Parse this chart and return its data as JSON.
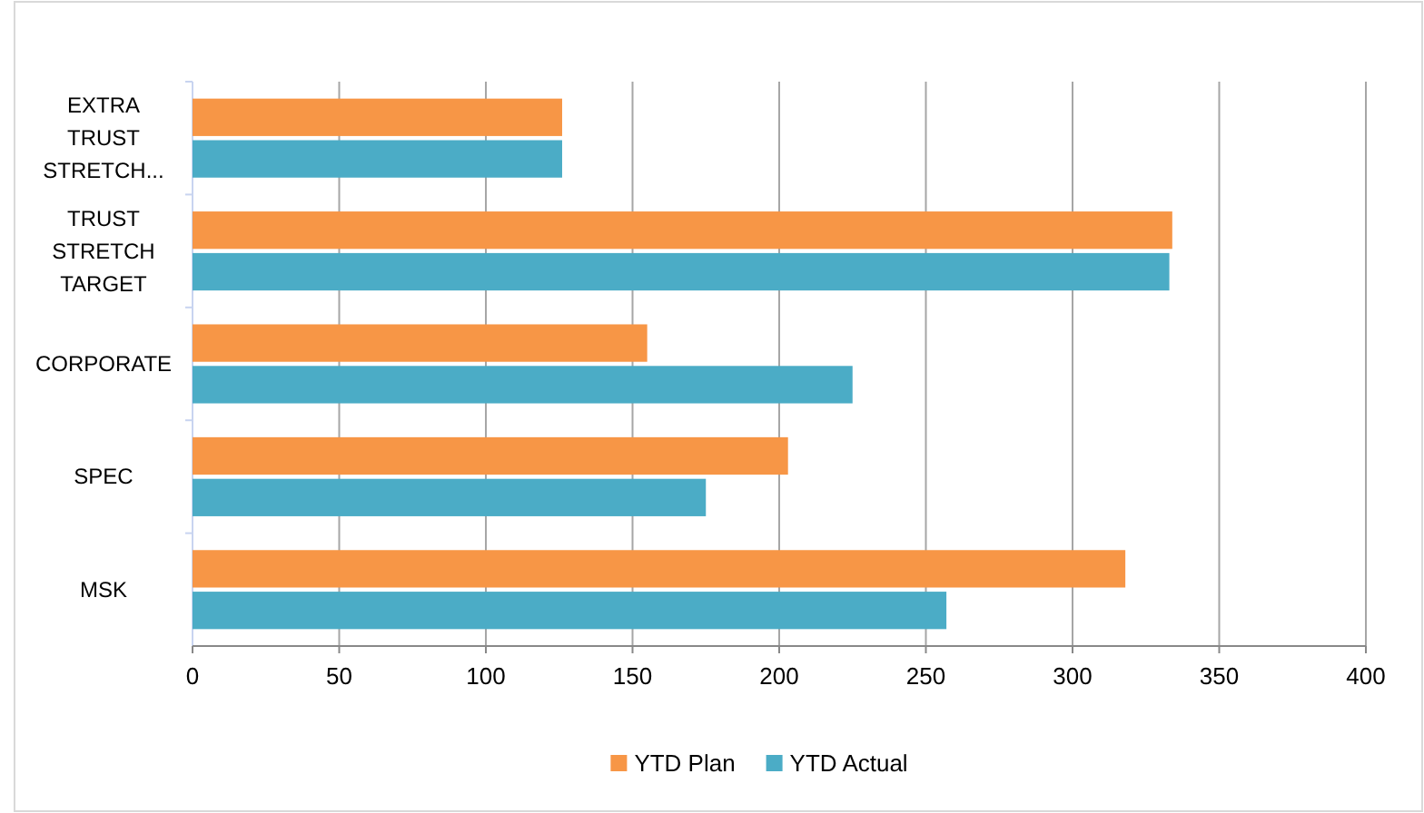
{
  "chart_data": {
    "type": "bar",
    "orientation": "horizontal",
    "categories": [
      "EXTRA TRUST STRETCH...",
      "TRUST STRETCH TARGET",
      "CORPORATE",
      "SPEC",
      "MSK"
    ],
    "series": [
      {
        "name": "YTD Plan",
        "color": "#f79646",
        "values": [
          126,
          334,
          155,
          203,
          318
        ]
      },
      {
        "name": "YTD Actual",
        "color": "#4bacc6",
        "values": [
          126,
          333,
          225,
          175,
          257
        ]
      }
    ],
    "xlim": [
      0,
      400
    ],
    "xticks": [
      0,
      50,
      100,
      150,
      200,
      250,
      300,
      350,
      400
    ],
    "grid": "x",
    "legend": "bottom"
  }
}
